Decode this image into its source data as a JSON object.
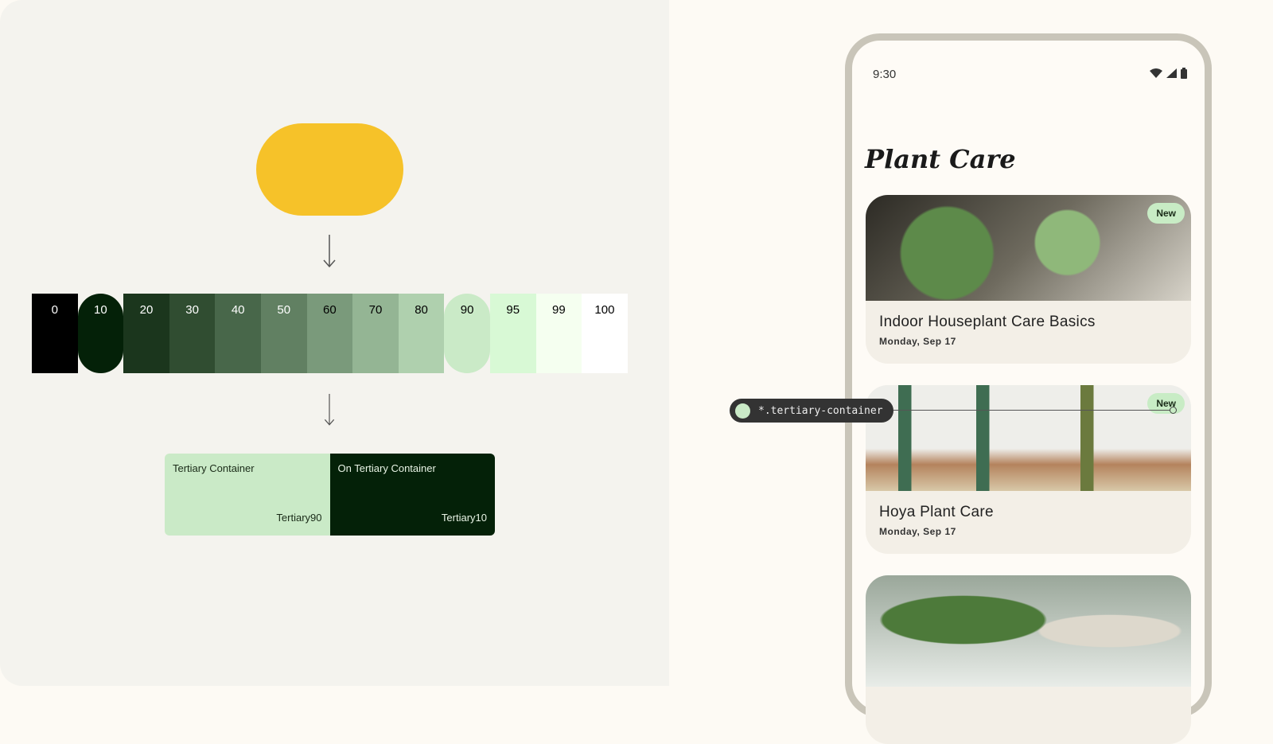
{
  "seed": {
    "color": "#f6c229"
  },
  "tonal_palette": [
    {
      "label": "0",
      "color": "#000000",
      "text": "#ffffff"
    },
    {
      "label": "10",
      "color": "#042108",
      "text": "#ffffff",
      "highlight": true
    },
    {
      "label": "20",
      "color": "#1b361d",
      "text": "#ffffff"
    },
    {
      "label": "30",
      "color": "#304d31",
      "text": "#ffffff"
    },
    {
      "label": "40",
      "color": "#48674a",
      "text": "#ffffff"
    },
    {
      "label": "50",
      "color": "#618062",
      "text": "#ffffff"
    },
    {
      "label": "60",
      "color": "#7a9a7b",
      "text": "#000000"
    },
    {
      "label": "70",
      "color": "#94b594",
      "text": "#000000"
    },
    {
      "label": "80",
      "color": "#afd0ae",
      "text": "#000000"
    },
    {
      "label": "90",
      "color": "#caeac7",
      "text": "#000000",
      "highlight": true
    },
    {
      "label": "95",
      "color": "#d8f9d5",
      "text": "#000000"
    },
    {
      "label": "99",
      "color": "#f5fff0",
      "text": "#000000"
    },
    {
      "label": "100",
      "color": "#ffffff",
      "text": "#000000"
    }
  ],
  "roles": [
    {
      "name": "Tertiary Container",
      "tone": "Tertiary90",
      "color": "#caeac7",
      "text": "#1a2b18"
    },
    {
      "name": "On Tertiary Container",
      "tone": "Tertiary10",
      "color": "#042108",
      "text": "#e8f3e5"
    }
  ],
  "phone": {
    "time": "9:30",
    "status_icons": [
      "wifi-icon",
      "signal-icon",
      "battery-icon"
    ],
    "title": "Plant Care",
    "cards": [
      {
        "title": "Indoor Houseplant Care Basics",
        "date": "Monday, Sep 17",
        "badge": "New"
      },
      {
        "title": "Hoya Plant Care",
        "date": "Monday, Sep 17",
        "badge": "New"
      },
      {
        "title": "",
        "date": ""
      }
    ]
  },
  "tooltip": {
    "label": "*.tertiary-container",
    "swatch": "#caeac7"
  }
}
